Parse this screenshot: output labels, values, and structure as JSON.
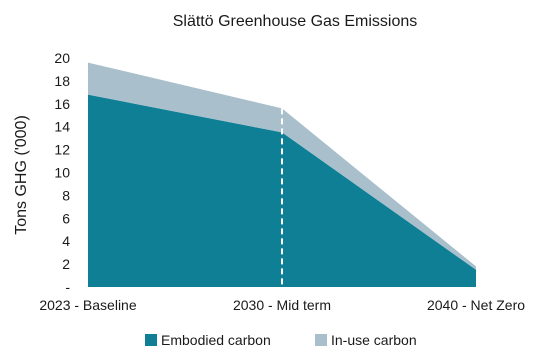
{
  "chart_data": {
    "type": "area",
    "title": "Slättö Greenhouse Gas Emissions",
    "xlabel": "",
    "ylabel": "Tons GHG ('000)",
    "categories": [
      "2023 - Baseline",
      "2030 - Mid term",
      "2040 - Net Zero"
    ],
    "x": [
      0,
      0.5,
      1
    ],
    "stacked": true,
    "ylim": [
      0,
      20
    ],
    "yticks": [
      0,
      2,
      4,
      6,
      8,
      10,
      12,
      14,
      16,
      18,
      20
    ],
    "ytick_labels": [
      "-",
      "2",
      "4",
      "6",
      "8",
      "10",
      "12",
      "14",
      "16",
      "18",
      "20"
    ],
    "grid": false,
    "legend": "bottom",
    "series": [
      {
        "name": "Embodied carbon",
        "color": "#0e7f95",
        "values": [
          16.8,
          13.5,
          1.5
        ]
      },
      {
        "name": "In-use carbon",
        "color": "#a9bfcc",
        "values": [
          2.8,
          2.1,
          0.3
        ]
      }
    ],
    "annotations": [
      {
        "type": "vline",
        "x": 0.5,
        "style": "dashed",
        "color": "#ffffff"
      }
    ]
  }
}
